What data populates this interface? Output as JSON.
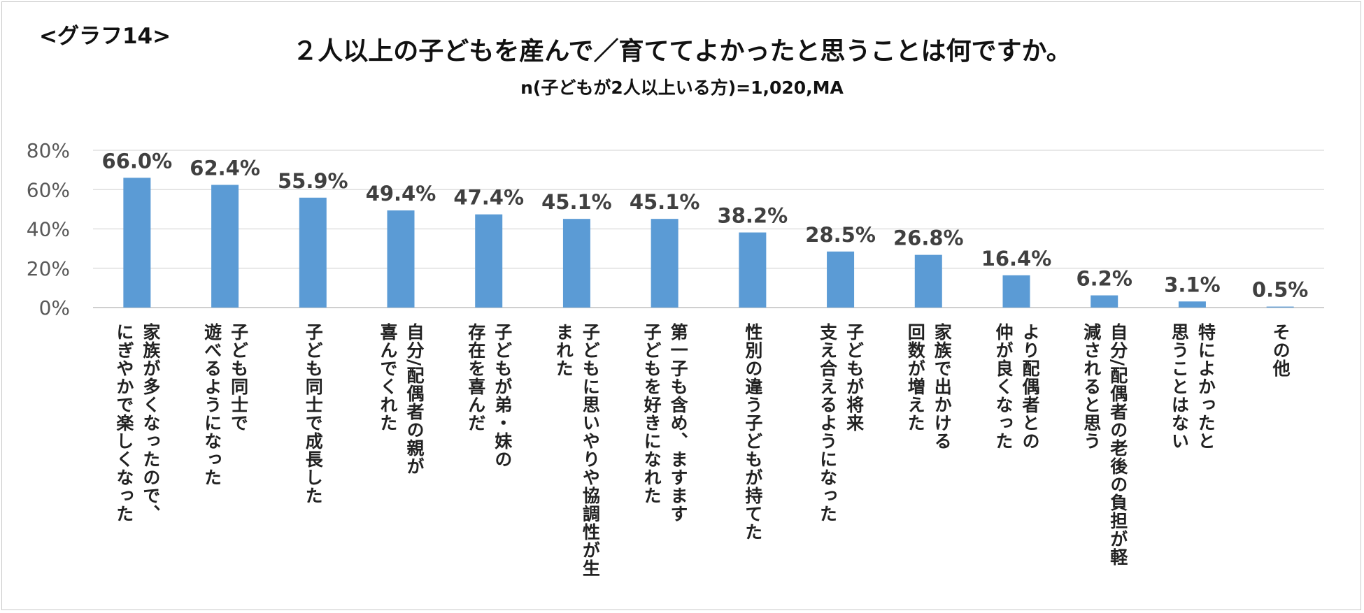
{
  "header": {
    "tag": "<グラフ14>",
    "title": "２人以上の子どもを産んで／育ててよかったと思うことは何ですか。",
    "subtitle": "n(子どもが2人以上いる方)=1,020,MA"
  },
  "chart_data": {
    "type": "bar",
    "title": "２人以上の子どもを産んで／育ててよかったと思うことは何ですか。",
    "subtitle": "n(子どもが2人以上いる方)=1,020,MA",
    "categories": [
      [
        "家族が多くなったので、",
        "にぎやかで楽しくなった"
      ],
      [
        "子ども同士で",
        "遊べるようになった"
      ],
      [
        "子ども同士で成長した"
      ],
      [
        "自分/配偶者の親が",
        "喜んでくれた"
      ],
      [
        "子どもが弟・妹の",
        "存在を喜んだ"
      ],
      [
        "子どもに思いやりや協調性が生",
        "まれた"
      ],
      [
        "第一子も含め、ますます",
        "子どもを好きになれた"
      ],
      [
        "性別の違う子どもが持てた"
      ],
      [
        "子どもが将来",
        "支え合えるようになった"
      ],
      [
        "家族で出かける",
        "回数が増えた"
      ],
      [
        "より配偶者との",
        "仲が良くなった"
      ],
      [
        "自分/配偶者の老後の負担が軽",
        "減されると思う"
      ],
      [
        "特によかったと",
        "思うことはない"
      ],
      [
        "その他"
      ]
    ],
    "values": [
      66.0,
      62.4,
      55.9,
      49.4,
      47.4,
      45.1,
      45.1,
      38.2,
      28.5,
      26.8,
      16.4,
      6.2,
      3.1,
      0.5
    ],
    "value_labels": [
      "66.0%",
      "62.4%",
      "55.9%",
      "49.4%",
      "47.4%",
      "45.1%",
      "45.1%",
      "38.2%",
      "28.5%",
      "26.8%",
      "16.4%",
      "6.2%",
      "3.1%",
      "0.5%"
    ],
    "ylim": [
      0,
      80
    ],
    "yticks": [
      0,
      20,
      40,
      60,
      80
    ],
    "ytick_labels": [
      "0%",
      "20%",
      "40%",
      "60%",
      "80%"
    ],
    "grid": true,
    "legend": "none",
    "colors": {
      "bar": "#5b9bd5",
      "grid": "#d9d9d9",
      "axis": "#bfbfbf",
      "tick_text": "#595959",
      "label_text": "#404040"
    }
  }
}
